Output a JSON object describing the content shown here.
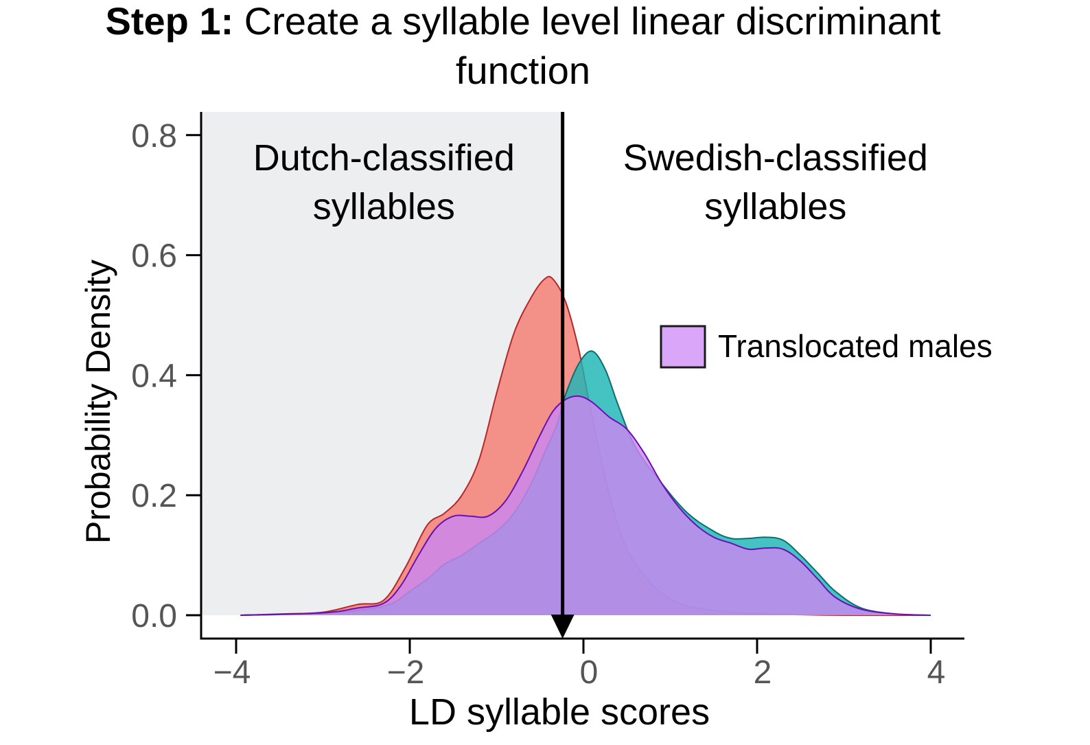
{
  "title": {
    "bold": "Step 1:",
    "rest": " Create a syllable level linear discriminant",
    "line2": "function"
  },
  "chart_data": {
    "type": "area",
    "xlabel": "LD syllable scores",
    "ylabel": "Probability Density",
    "xlim": [
      -4.2,
      4.2
    ],
    "ylim": [
      -0.04,
      0.85
    ],
    "x_ticks": [
      -4,
      -2,
      0,
      2,
      4
    ],
    "x_tick_labels": [
      "−4",
      "−2",
      "0",
      "2",
      "4"
    ],
    "y_ticks": [
      0.0,
      0.2,
      0.4,
      0.6,
      0.8
    ],
    "y_tick_labels": [
      "0.0",
      "0.2",
      "0.4",
      "0.6",
      "0.8"
    ],
    "threshold_x": -0.24,
    "regions": [
      {
        "label_lines": [
          "Dutch-classified",
          "syllables"
        ],
        "side": "left",
        "shaded": true,
        "color": "#eceeef"
      },
      {
        "label_lines": [
          "Swedish-classified",
          "syllables"
        ],
        "side": "right",
        "shaded": false,
        "color": "#ffffff"
      }
    ],
    "legend": {
      "position": "right",
      "entries": [
        {
          "label": "Translocated males",
          "color": "#d9a6f9"
        }
      ]
    },
    "series": [
      {
        "color": "#f47c72",
        "stroke": "#b2282b",
        "x": [
          -3.95,
          -3.5,
          -3.0,
          -2.6,
          -2.3,
          -2.05,
          -1.8,
          -1.6,
          -1.4,
          -1.2,
          -1.0,
          -0.8,
          -0.6,
          -0.45,
          -0.35,
          -0.2,
          -0.05,
          0.1,
          0.3,
          0.5,
          0.8,
          1.1,
          1.5,
          2.0,
          2.5,
          3.0,
          3.5,
          4.0
        ],
        "y": [
          0.0,
          0.002,
          0.005,
          0.018,
          0.025,
          0.08,
          0.15,
          0.17,
          0.2,
          0.26,
          0.37,
          0.47,
          0.53,
          0.56,
          0.56,
          0.52,
          0.44,
          0.33,
          0.2,
          0.11,
          0.05,
          0.02,
          0.008,
          0.003,
          0.001,
          0.0,
          0.0,
          0.0
        ]
      },
      {
        "color": "#1cb4b4",
        "stroke": "#0d6d6f",
        "x": [
          -3.95,
          -3.0,
          -2.5,
          -2.2,
          -2.0,
          -1.8,
          -1.6,
          -1.4,
          -1.2,
          -1.0,
          -0.8,
          -0.6,
          -0.45,
          -0.3,
          -0.2,
          -0.05,
          0.1,
          0.25,
          0.4,
          0.6,
          0.9,
          1.2,
          1.5,
          1.7,
          1.9,
          2.1,
          2.3,
          2.5,
          2.7,
          2.9,
          3.2,
          3.6,
          4.0
        ],
        "y": [
          0.0,
          0.003,
          0.01,
          0.02,
          0.04,
          0.06,
          0.085,
          0.1,
          0.12,
          0.14,
          0.17,
          0.22,
          0.27,
          0.32,
          0.37,
          0.42,
          0.44,
          0.41,
          0.35,
          0.28,
          0.22,
          0.17,
          0.14,
          0.128,
          0.128,
          0.13,
          0.125,
          0.1,
          0.07,
          0.04,
          0.012,
          0.002,
          0.0
        ]
      },
      {
        "color": "#cb86f0",
        "stroke": "#6a0fb6",
        "x": [
          -3.95,
          -3.0,
          -2.6,
          -2.3,
          -2.1,
          -1.9,
          -1.7,
          -1.5,
          -1.3,
          -1.1,
          -0.9,
          -0.7,
          -0.5,
          -0.35,
          -0.2,
          -0.05,
          0.1,
          0.3,
          0.5,
          0.7,
          0.9,
          1.1,
          1.3,
          1.5,
          1.7,
          1.9,
          2.1,
          2.3,
          2.5,
          2.7,
          2.9,
          3.2,
          3.6,
          4.0
        ],
        "y": [
          0.0,
          0.004,
          0.012,
          0.02,
          0.05,
          0.1,
          0.145,
          0.165,
          0.165,
          0.165,
          0.19,
          0.24,
          0.3,
          0.34,
          0.36,
          0.365,
          0.355,
          0.33,
          0.31,
          0.27,
          0.22,
          0.18,
          0.15,
          0.13,
          0.12,
          0.11,
          0.112,
          0.11,
          0.09,
          0.06,
          0.03,
          0.01,
          0.002,
          0.0
        ]
      }
    ]
  }
}
